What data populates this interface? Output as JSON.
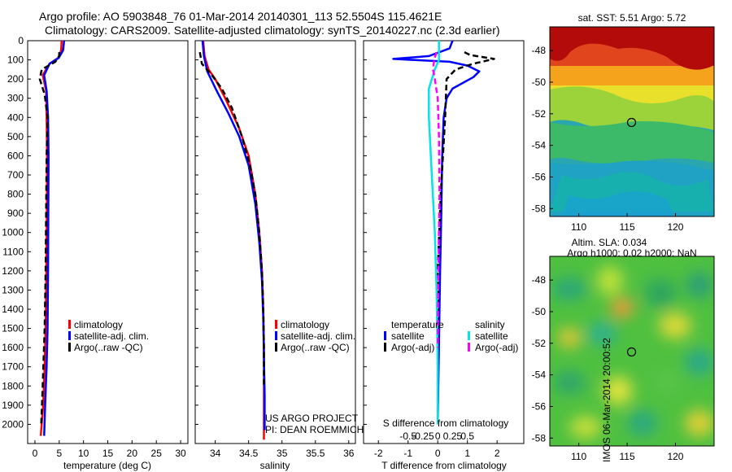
{
  "title": {
    "line1": "Argo profile: AO 5903848_76 01-Mar-2014 20140301_113 52.5504S 115.4621E",
    "line2": "Climatology: CARS2009. Satellite-adjusted climatology: synTS_20140227.nc (2.3d earlier)"
  },
  "colors": {
    "climatology": "#ff0000",
    "satellite": "#0000ff",
    "argo": "#000000",
    "salinity_satellite": "#00e5e5",
    "salinity_argo": "#ff00ff"
  },
  "depth_axis": {
    "ticks": [
      0,
      100,
      200,
      300,
      400,
      500,
      600,
      700,
      800,
      900,
      1000,
      1100,
      1200,
      1300,
      1400,
      1500,
      1600,
      1700,
      1800,
      1900,
      2000
    ],
    "range": [
      0,
      2100
    ]
  },
  "chart_data": [
    {
      "type": "line",
      "panel": "temperature",
      "xlabel": "temperature (deg C)",
      "xlim": [
        -1.5,
        31.5
      ],
      "xticks": [
        0,
        5,
        10,
        15,
        20,
        25,
        30
      ],
      "legend": [
        "climatology",
        "satellite-adj. clim.",
        "Argo(..raw -QC)"
      ],
      "series": [
        {
          "name": "climatology",
          "style": "solid",
          "x": [
            5.5,
            5.4,
            4.8,
            3.0,
            1.6,
            2.3,
            2.4,
            2.5,
            2.45,
            2.35,
            2.2,
            2.0,
            1.7,
            1.2
          ],
          "y": [
            0,
            50,
            90,
            120,
            180,
            260,
            400,
            600,
            900,
            1200,
            1500,
            1700,
            1900,
            2060
          ]
        },
        {
          "name": "satellite-adj. clim.",
          "style": "solid",
          "x": [
            6.0,
            5.8,
            4.9,
            3.0,
            1.9,
            2.4,
            2.7,
            2.8,
            2.75,
            2.7,
            2.6,
            2.4,
            2.1,
            1.9
          ],
          "y": [
            0,
            50,
            90,
            120,
            180,
            260,
            400,
            600,
            900,
            1200,
            1500,
            1700,
            1900,
            2060
          ]
        },
        {
          "name": "Argo(..raw -QC)",
          "style": "dashed",
          "x": [
            5.0,
            5.0,
            4.2,
            1.4,
            1.0,
            2.0,
            2.6,
            2.4,
            2.3,
            2.2,
            2.0,
            1.6,
            1.3
          ],
          "y": [
            60,
            80,
            110,
            150,
            200,
            280,
            400,
            600,
            900,
            1200,
            1500,
            1800,
            2000
          ]
        }
      ]
    },
    {
      "type": "line",
      "panel": "salinity",
      "xlabel": "salinity",
      "xlim": [
        33.7,
        36.1
      ],
      "xticks": [
        34,
        34.5,
        35,
        35.5,
        36
      ],
      "xticklabels": [
        "34",
        "34.5",
        "35",
        "35.5",
        "36"
      ],
      "legend": [
        "climatology",
        "satellite-adj. clim.",
        "Argo(..raw -QC)"
      ],
      "credit": [
        "US ARGO PROJECT",
        "PI: DEAN ROEMMICH"
      ],
      "series": [
        {
          "name": "climatology",
          "style": "solid",
          "x": [
            33.82,
            33.84,
            33.9,
            34.0,
            34.15,
            34.35,
            34.5,
            34.6,
            34.66,
            34.7,
            34.72,
            34.73,
            34.73,
            34.73,
            34.73
          ],
          "y": [
            0,
            80,
            150,
            200,
            300,
            450,
            600,
            800,
            1000,
            1200,
            1400,
            1600,
            1800,
            2000,
            2080
          ]
        },
        {
          "name": "satellite-adj. clim.",
          "style": "solid",
          "x": [
            33.81,
            33.83,
            33.88,
            34.02,
            34.2,
            34.36,
            34.5,
            34.6,
            34.66,
            34.7,
            34.72,
            34.73,
            34.74,
            34.74,
            34.74
          ],
          "y": [
            0,
            80,
            160,
            260,
            380,
            500,
            650,
            850,
            1050,
            1250,
            1450,
            1650,
            1850,
            2000,
            2030
          ]
        },
        {
          "name": "Argo(..raw -QC)",
          "style": "dashed",
          "x": [
            33.77,
            33.8,
            33.95,
            34.1,
            34.25,
            34.4,
            34.52,
            34.6,
            34.66,
            34.7,
            34.72,
            34.73,
            34.73
          ],
          "y": [
            60,
            120,
            180,
            250,
            350,
            500,
            650,
            800,
            1000,
            1200,
            1400,
            1600,
            1800
          ]
        }
      ]
    },
    {
      "type": "line",
      "panel": "difference",
      "xlabel": "T difference from climatology",
      "xlim": [
        -2.5,
        2.9
      ],
      "xticks": [
        -2,
        -1,
        0,
        1,
        2
      ],
      "s_axis_label": "S difference from climatology",
      "s_ticks": [
        -0.5,
        -0.25,
        0,
        0.25,
        0.5
      ],
      "s_ticklabels": [
        "-0.5",
        "-0.25",
        "0",
        "0.25",
        "0.5"
      ],
      "legend": {
        "temperature_title": "temperature",
        "salinity_title": "salinity",
        "temperature_items": [
          "satellite",
          "Argo(-adj)"
        ],
        "salinity_items": [
          "satellite",
          "Argo(-adj)"
        ]
      },
      "series": [
        {
          "name": "temperature satellite",
          "quantity": "T",
          "style": "solid",
          "x": [
            0.5,
            0.4,
            -0.3,
            -1.5,
            0.4,
            1.0,
            1.4,
            1.2,
            0.5,
            0.3,
            0.2,
            0.15,
            0.12,
            0.08,
            0.05,
            0.02,
            0.0
          ],
          "y": [
            0,
            40,
            80,
            95,
            110,
            130,
            160,
            190,
            250,
            300,
            400,
            600,
            900,
            1200,
            1500,
            1800,
            2000
          ]
        },
        {
          "name": "temperature Argo(-adj)",
          "quantity": "T",
          "style": "dashed",
          "x": [
            0.9,
            1.1,
            1.9,
            1.2,
            0.6,
            0.3,
            0.25,
            0.1,
            0.0,
            0.0,
            0.0
          ],
          "y": [
            60,
            75,
            95,
            120,
            150,
            200,
            400,
            800,
            1200,
            1600,
            2000
          ]
        },
        {
          "name": "salinity satellite",
          "quantity": "S",
          "style": "solid",
          "x": [
            0.02,
            0.02,
            -0.05,
            -0.15,
            -0.15,
            -0.1,
            -0.05,
            -0.02,
            0.0,
            0.0
          ],
          "y": [
            0,
            100,
            150,
            250,
            400,
            700,
            1000,
            1300,
            1700,
            2000
          ]
        },
        {
          "name": "salinity Argo(-adj)",
          "quantity": "S",
          "style": "dashed",
          "x": [
            -0.02,
            -0.06,
            -0.08,
            -0.05,
            0.0,
            0.02,
            0.03,
            0.01,
            0.0
          ],
          "y": [
            60,
            100,
            150,
            200,
            300,
            500,
            800,
            1200,
            1600
          ]
        }
      ]
    },
    {
      "type": "heatmap",
      "panel": "sst_map",
      "title": "sat. SST: 5.51 Argo: 5.72",
      "xlim": [
        107,
        124
      ],
      "ylim": [
        -58.5,
        -46.5
      ],
      "xticks": [
        110,
        115,
        120
      ],
      "yticks": [
        -48,
        -50,
        -52,
        -54,
        -56,
        -58
      ],
      "marker": {
        "lon": 115.46,
        "lat": -52.55
      }
    },
    {
      "type": "heatmap",
      "panel": "sla_map",
      "title_line1": "Altim. SLA: 0.034",
      "title_line2": "Argo h1000: 0.02 h2000: NaN",
      "xlim": [
        107,
        124
      ],
      "ylim": [
        -58.5,
        -46.5
      ],
      "xticks": [
        110,
        115,
        120
      ],
      "yticks": [
        -48,
        -50,
        -52,
        -54,
        -56,
        -58
      ],
      "marker": {
        "lon": 115.46,
        "lat": -52.55
      }
    }
  ],
  "footer": {
    "stamp": "IMOS 06-Mar-2014 20:00:52"
  }
}
